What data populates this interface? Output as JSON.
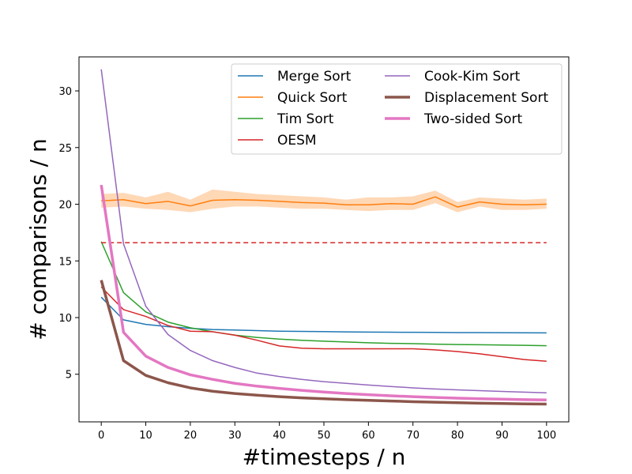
{
  "chart_data": {
    "type": "line",
    "xlabel": "#timesteps / n",
    "ylabel": "# comparisons / n",
    "xlim": [
      -5,
      105
    ],
    "ylim": [
      0.8,
      33.0
    ],
    "xticks": [
      0,
      10,
      20,
      30,
      40,
      50,
      60,
      70,
      80,
      90,
      100
    ],
    "yticks": [
      5,
      10,
      15,
      20,
      25,
      30
    ],
    "x": [
      0,
      5,
      10,
      15,
      20,
      25,
      30,
      35,
      40,
      45,
      50,
      55,
      60,
      65,
      70,
      75,
      80,
      85,
      90,
      95,
      100
    ],
    "legend_position": "top-right",
    "legend_columns": 2,
    "series": [
      {
        "name": "Merge Sort",
        "color": "#1f77b4",
        "width": 1.5,
        "values": [
          11.8,
          9.8,
          9.4,
          9.2,
          9.05,
          8.95,
          8.9,
          8.85,
          8.8,
          8.78,
          8.76,
          8.74,
          8.72,
          8.71,
          8.7,
          8.69,
          8.68,
          8.68,
          8.67,
          8.66,
          8.65
        ]
      },
      {
        "name": "Quick Sort",
        "color": "#ff7f0e",
        "width": 1.5,
        "values": [
          20.3,
          20.4,
          20.05,
          20.25,
          19.85,
          20.35,
          20.4,
          20.35,
          20.25,
          20.15,
          20.1,
          19.95,
          19.95,
          20.05,
          20.0,
          20.65,
          19.75,
          20.2,
          20.0,
          19.95,
          20.0
        ],
        "band_low": [
          19.7,
          19.8,
          19.6,
          19.5,
          19.3,
          19.6,
          19.8,
          19.8,
          19.7,
          19.6,
          19.6,
          19.5,
          19.4,
          19.5,
          19.5,
          20.1,
          19.3,
          19.8,
          19.5,
          19.5,
          19.6
        ],
        "band_high": [
          20.9,
          21.0,
          20.6,
          21.1,
          20.4,
          21.3,
          21.1,
          20.9,
          20.8,
          20.7,
          20.6,
          20.4,
          20.6,
          20.6,
          20.7,
          21.2,
          20.2,
          20.6,
          20.5,
          20.4,
          20.5
        ]
      },
      {
        "name": "Tim Sort",
        "color": "#2ca02c",
        "width": 1.5,
        "values": [
          16.7,
          12.2,
          10.5,
          9.6,
          9.1,
          8.75,
          8.45,
          8.25,
          8.1,
          8.0,
          7.92,
          7.85,
          7.78,
          7.73,
          7.7,
          7.66,
          7.62,
          7.6,
          7.58,
          7.55,
          7.52
        ]
      },
      {
        "name": "OESM",
        "color": "#d62728",
        "width": 1.5,
        "values": [
          12.7,
          10.7,
          10.1,
          9.3,
          8.8,
          8.75,
          8.45,
          8.0,
          7.5,
          7.3,
          7.25,
          7.25,
          7.25,
          7.25,
          7.25,
          7.15,
          7.0,
          6.8,
          6.55,
          6.3,
          6.15
        ]
      },
      {
        "name": "OESM (reference)",
        "color": "#d62728",
        "width": 1.5,
        "dashed": true,
        "in_legend": false,
        "values": [
          16.6,
          16.6,
          16.6,
          16.6,
          16.6,
          16.6,
          16.6,
          16.6,
          16.6,
          16.6,
          16.6,
          16.6,
          16.6,
          16.6,
          16.6,
          16.6,
          16.6,
          16.6,
          16.6,
          16.6,
          16.6
        ]
      },
      {
        "name": "Cook-Kim Sort",
        "color": "#9467bd",
        "width": 1.5,
        "values": [
          31.9,
          16.5,
          11.0,
          8.5,
          7.1,
          6.2,
          5.6,
          5.1,
          4.8,
          4.55,
          4.35,
          4.2,
          4.05,
          3.92,
          3.8,
          3.7,
          3.62,
          3.55,
          3.48,
          3.42,
          3.36
        ]
      },
      {
        "name": "Displacement Sort",
        "color": "#8c564b",
        "width": 3.5,
        "values": [
          13.3,
          6.2,
          4.9,
          4.25,
          3.8,
          3.5,
          3.3,
          3.15,
          3.02,
          2.92,
          2.84,
          2.76,
          2.7,
          2.64,
          2.58,
          2.53,
          2.49,
          2.45,
          2.42,
          2.39,
          2.37
        ]
      },
      {
        "name": "Two-sided Sort",
        "color": "#e377c2",
        "width": 3.5,
        "values": [
          21.7,
          8.7,
          6.6,
          5.6,
          4.95,
          4.55,
          4.2,
          3.95,
          3.75,
          3.58,
          3.43,
          3.3,
          3.2,
          3.1,
          3.02,
          2.95,
          2.89,
          2.84,
          2.8,
          2.76,
          2.73
        ]
      }
    ]
  }
}
